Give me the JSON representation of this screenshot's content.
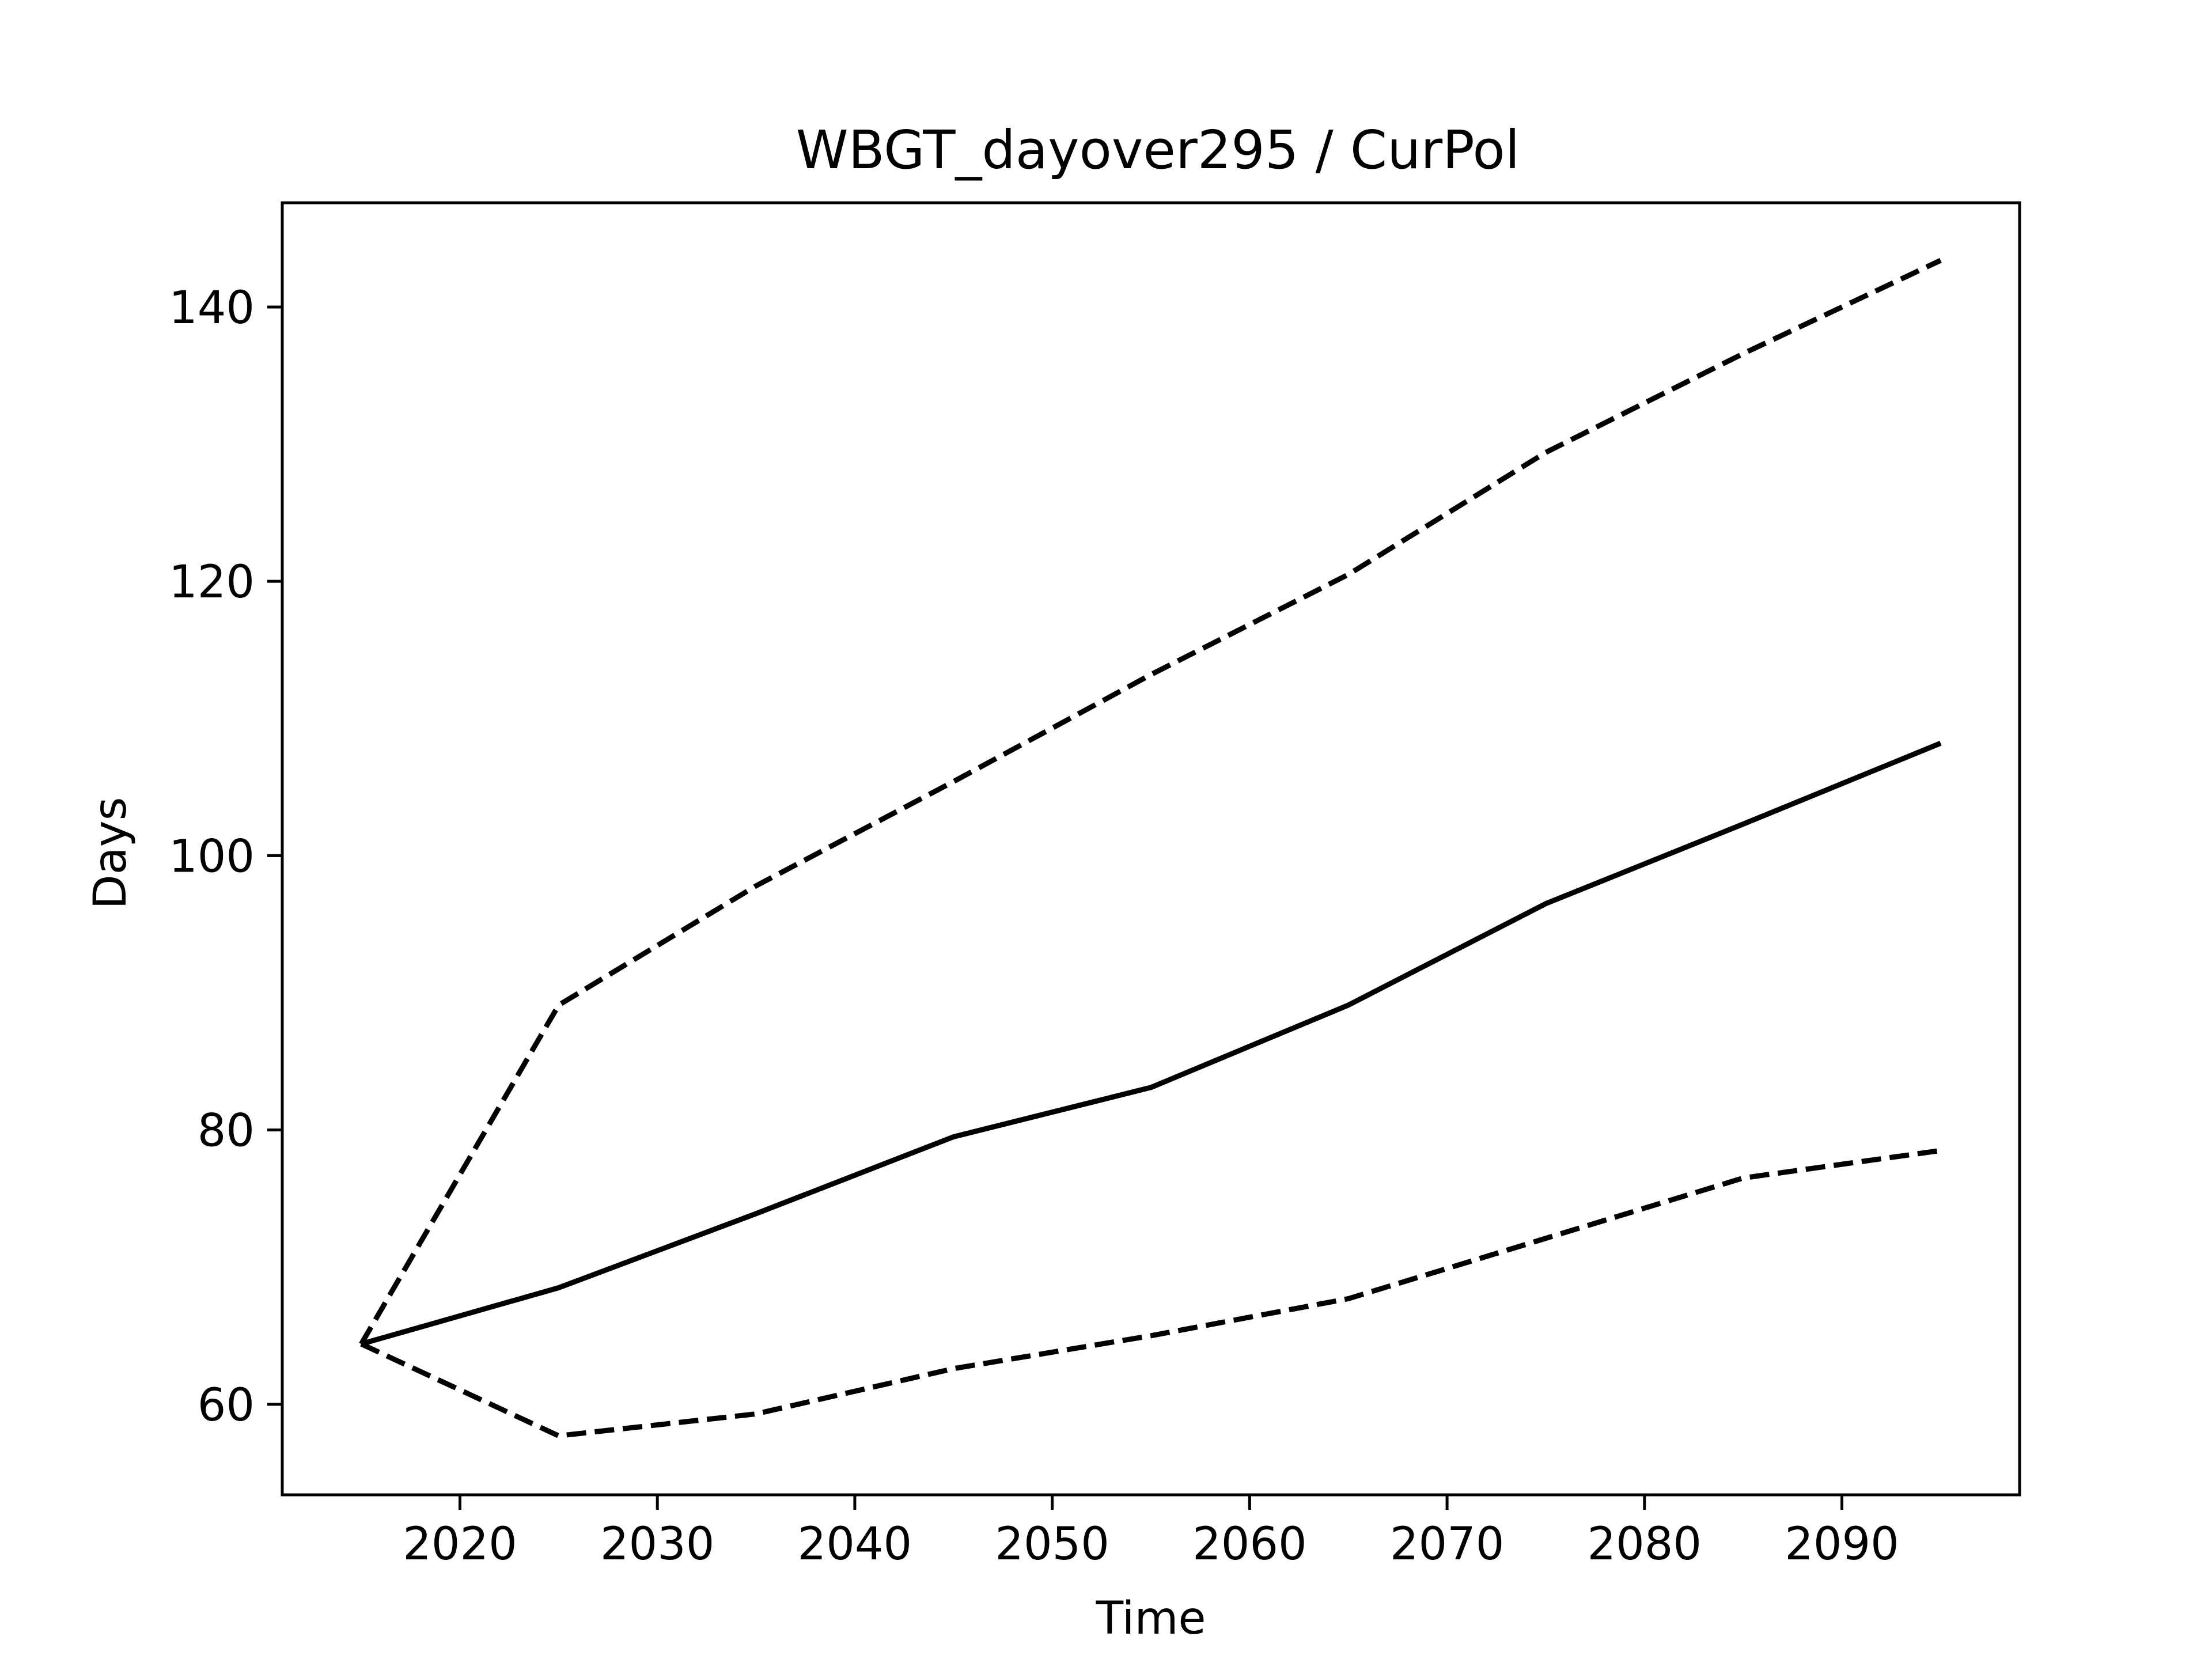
{
  "chart_data": {
    "type": "line",
    "title": "WBGT_dayover295 / CurPol",
    "xlabel": "Time",
    "ylabel": "Days",
    "xlim": [
      2011,
      2099
    ],
    "ylim": [
      53.4,
      147.6
    ],
    "x_ticks": [
      2020,
      2030,
      2040,
      2050,
      2060,
      2070,
      2080,
      2090
    ],
    "y_ticks": [
      60,
      80,
      100,
      120,
      140
    ],
    "grid": false,
    "x": [
      2015,
      2025,
      2035,
      2045,
      2055,
      2065,
      2075,
      2085,
      2095
    ],
    "series": [
      {
        "line_style": "solid",
        "color": "#000000",
        "values": [
          64.4,
          68.5,
          73.9,
          79.5,
          83.1,
          89.1,
          96.5,
          102.3,
          108.2
        ]
      },
      {
        "line_style": "dashed",
        "color": "#000000",
        "values": [
          64.4,
          89.1,
          97.8,
          105.4,
          113.2,
          120.5,
          129.4,
          136.6,
          143.4
        ]
      },
      {
        "line_style": "dashed",
        "color": "#000000",
        "values": [
          64.4,
          57.7,
          59.3,
          62.6,
          65.0,
          67.7,
          72.1,
          76.5,
          78.5
        ]
      }
    ]
  }
}
